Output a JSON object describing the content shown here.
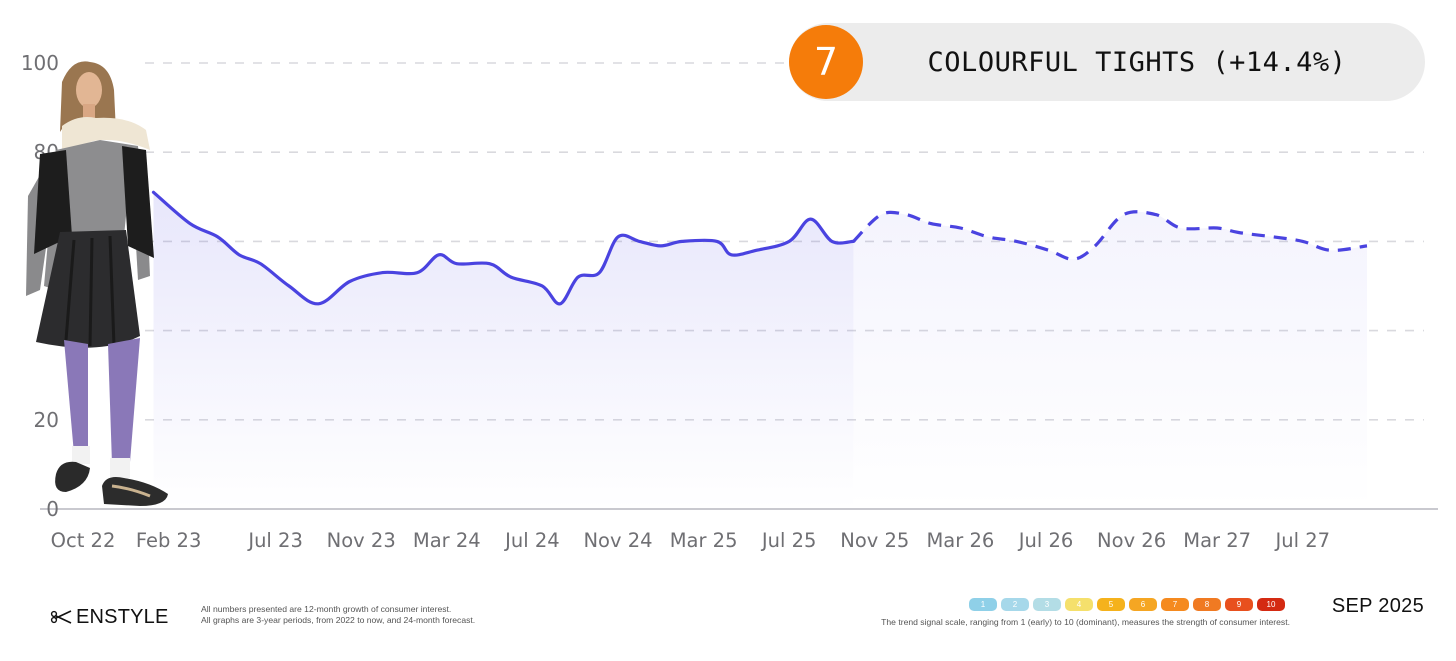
{
  "badge": {
    "rank": "7",
    "title": "COLOURFUL TIGHTS (+14.4%)"
  },
  "chart_data": {
    "type": "line",
    "ylim": [
      0,
      100
    ],
    "y_ticks": [
      {
        "value": 0,
        "label": "0"
      },
      {
        "value": 20,
        "label": "20"
      },
      {
        "value": 40,
        "label": ""
      },
      {
        "value": 60,
        "label": ""
      },
      {
        "value": 80,
        "label": "80"
      },
      {
        "value": 100,
        "label": "100"
      }
    ],
    "x_range": [
      "2022-10",
      "2027-10"
    ],
    "x_ticks": [
      {
        "date": "2022-10",
        "label": "Oct 22"
      },
      {
        "date": "2023-02",
        "label": "Feb 23"
      },
      {
        "date": "2023-07",
        "label": "Jul 23"
      },
      {
        "date": "2023-11",
        "label": "Nov 23"
      },
      {
        "date": "2024-03",
        "label": "Mar 24"
      },
      {
        "date": "2024-07",
        "label": "Jul 24"
      },
      {
        "date": "2024-11",
        "label": "Nov 24"
      },
      {
        "date": "2025-03",
        "label": "Mar 25"
      },
      {
        "date": "2025-07",
        "label": "Jul 25"
      },
      {
        "date": "2025-11",
        "label": "Nov 25"
      },
      {
        "date": "2026-03",
        "label": "Mar 26"
      },
      {
        "date": "2026-07",
        "label": "Jul 26"
      },
      {
        "date": "2026-11",
        "label": "Nov 26"
      },
      {
        "date": "2027-03",
        "label": "Mar 27"
      },
      {
        "date": "2027-07",
        "label": "Jul 27"
      }
    ],
    "grid": true,
    "series": [
      {
        "style": "solid",
        "color": "#4a43e0",
        "points": [
          {
            "x": "2023-01-10",
            "y": 71
          },
          {
            "x": "2023-03-01",
            "y": 64
          },
          {
            "x": "2023-04-10",
            "y": 61
          },
          {
            "x": "2023-05-10",
            "y": 57
          },
          {
            "x": "2023-06-10",
            "y": 55
          },
          {
            "x": "2023-07-20",
            "y": 50
          },
          {
            "x": "2023-09-01",
            "y": 46
          },
          {
            "x": "2023-10-15",
            "y": 51
          },
          {
            "x": "2023-12-01",
            "y": 53
          },
          {
            "x": "2024-01-20",
            "y": 53
          },
          {
            "x": "2024-02-20",
            "y": 57
          },
          {
            "x": "2024-03-15",
            "y": 55
          },
          {
            "x": "2024-05-01",
            "y": 55
          },
          {
            "x": "2024-06-01",
            "y": 52
          },
          {
            "x": "2024-07-15",
            "y": 50
          },
          {
            "x": "2024-08-10",
            "y": 46
          },
          {
            "x": "2024-09-05",
            "y": 52
          },
          {
            "x": "2024-10-05",
            "y": 53
          },
          {
            "x": "2024-11-01",
            "y": 61
          },
          {
            "x": "2024-12-01",
            "y": 60
          },
          {
            "x": "2025-01-01",
            "y": 59
          },
          {
            "x": "2025-02-01",
            "y": 60
          },
          {
            "x": "2025-03-20",
            "y": 60
          },
          {
            "x": "2025-04-10",
            "y": 57
          },
          {
            "x": "2025-05-15",
            "y": 58
          },
          {
            "x": "2025-07-01",
            "y": 60
          },
          {
            "x": "2025-08-01",
            "y": 65
          },
          {
            "x": "2025-09-01",
            "y": 60
          },
          {
            "x": "2025-10-01",
            "y": 60
          }
        ]
      },
      {
        "style": "dashed",
        "color": "#4a43e0",
        "points": [
          {
            "x": "2025-10-01",
            "y": 60
          },
          {
            "x": "2025-11-10",
            "y": 66
          },
          {
            "x": "2025-12-15",
            "y": 66
          },
          {
            "x": "2026-01-20",
            "y": 64
          },
          {
            "x": "2026-03-01",
            "y": 63
          },
          {
            "x": "2026-04-10",
            "y": 61
          },
          {
            "x": "2026-05-20",
            "y": 60
          },
          {
            "x": "2026-07-05",
            "y": 58
          },
          {
            "x": "2026-08-10",
            "y": 56
          },
          {
            "x": "2026-09-10",
            "y": 59
          },
          {
            "x": "2026-10-20",
            "y": 66
          },
          {
            "x": "2026-12-05",
            "y": 66
          },
          {
            "x": "2027-01-10",
            "y": 63
          },
          {
            "x": "2027-03-01",
            "y": 63
          },
          {
            "x": "2027-04-01",
            "y": 62
          },
          {
            "x": "2027-05-20",
            "y": 61
          },
          {
            "x": "2027-07-01",
            "y": 60
          },
          {
            "x": "2027-08-10",
            "y": 58
          },
          {
            "x": "2027-10-01",
            "y": 59
          }
        ]
      }
    ]
  },
  "footer": {
    "logo_text": "ENSTYLE",
    "note_line1": "All numbers presented are 12-month growth of consumer interest.",
    "note_line2": "All graphs are 3-year periods, from 2022 to now, and 24-month forecast.",
    "scale_caption": "The trend signal scale, ranging from 1 (early) to 10 (dominant), measures the strength of consumer interest.",
    "scale": [
      {
        "label": "1",
        "color": "#8fd0e8"
      },
      {
        "label": "2",
        "color": "#a6d8ea"
      },
      {
        "label": "3",
        "color": "#b3dde6"
      },
      {
        "label": "4",
        "color": "#f5e06c"
      },
      {
        "label": "5",
        "color": "#f5b21c"
      },
      {
        "label": "6",
        "color": "#f5a623"
      },
      {
        "label": "7",
        "color": "#f58a1f"
      },
      {
        "label": "8",
        "color": "#f07a22"
      },
      {
        "label": "9",
        "color": "#e8501e"
      },
      {
        "label": "10",
        "color": "#d42a12"
      }
    ],
    "date": "SEP 2025"
  },
  "colors": {
    "accent": "#4a43e0",
    "badge_circle": "#f57c0a",
    "badge_pill": "#ececec"
  },
  "photo": {
    "subject": "model wearing shearling-collared leather vest, grey knit top, black pleated skirt and purple tights"
  }
}
